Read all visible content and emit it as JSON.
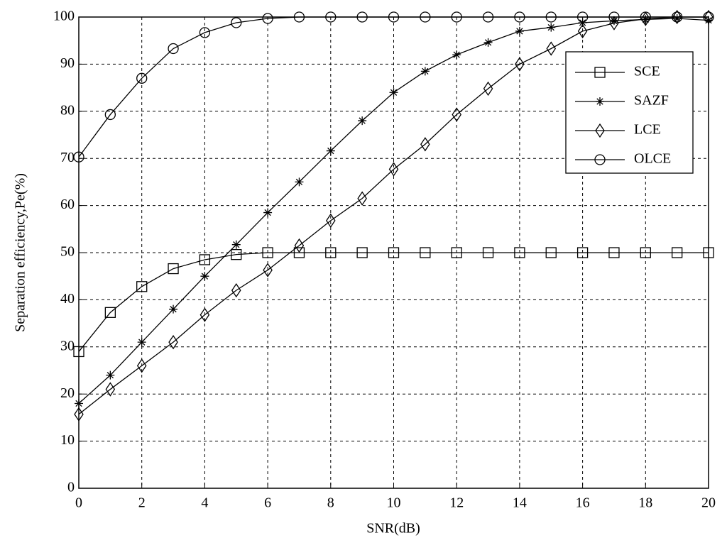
{
  "chart_data": {
    "type": "line",
    "xlabel": "SNR(dB)",
    "ylabel": "Separation efficiency,Pe(%)",
    "x": [
      0,
      1,
      2,
      3,
      4,
      5,
      6,
      7,
      8,
      9,
      10,
      11,
      12,
      13,
      14,
      15,
      16,
      17,
      18,
      19,
      20
    ],
    "series": [
      {
        "name": "SCE",
        "color": "#000000",
        "marker": "square",
        "values": [
          29,
          37.3,
          42.8,
          46.6,
          48.5,
          49.6,
          50,
          50,
          50,
          50,
          50,
          50,
          50,
          50,
          50,
          50,
          50,
          50,
          50,
          50,
          50
        ]
      },
      {
        "name": "SAZF",
        "color": "#000000",
        "marker": "star",
        "values": [
          18,
          24,
          31,
          38,
          45,
          51.7,
          58.5,
          65,
          71.6,
          78,
          84,
          88.5,
          92,
          94.6,
          97,
          97.8,
          98.8,
          99.2,
          99.5,
          99.7,
          99.3
        ]
      },
      {
        "name": "LCE",
        "color": "#000000",
        "marker": "diamond",
        "values": [
          15.7,
          21,
          26,
          31,
          36.8,
          42,
          46.3,
          51.5,
          56.8,
          61.5,
          67.7,
          73,
          79.3,
          84.8,
          90,
          93.3,
          97,
          98.7,
          99.6,
          100,
          100
        ]
      },
      {
        "name": "OLCE",
        "color": "#000000",
        "marker": "circle",
        "values": [
          70.3,
          79.3,
          87,
          93.3,
          96.7,
          98.8,
          99.7,
          100,
          100,
          100,
          100,
          100,
          100,
          100,
          100,
          100,
          100,
          100,
          100,
          100,
          100
        ]
      }
    ],
    "xlim": [
      0,
      20
    ],
    "ylim": [
      0,
      100
    ],
    "xticks": [
      0,
      2,
      4,
      6,
      8,
      10,
      12,
      14,
      16,
      18,
      20
    ],
    "yticks": [
      0,
      10,
      20,
      30,
      40,
      50,
      60,
      70,
      80,
      90,
      100
    ],
    "grid": true,
    "legend": "upper right"
  }
}
